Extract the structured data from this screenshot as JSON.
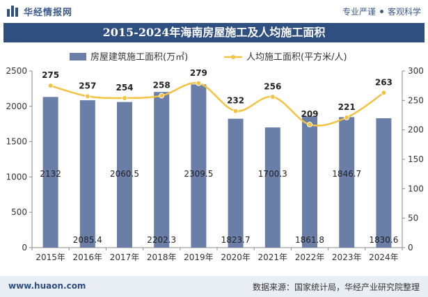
{
  "header": {
    "brand": "华经情报网",
    "slogan_left": "专业严谨",
    "slogan_right": "客观科学"
  },
  "footer": {
    "url": "www.huaon.com",
    "source": "数据来源：国家统计局，华经产业研究院整理"
  },
  "chart_data": {
    "type": "bar+line",
    "title": "2015-2024年海南房屋施工及人均施工面积",
    "categories": [
      "2015年",
      "2016年",
      "2017年",
      "2018年",
      "2019年",
      "2020年",
      "2021年",
      "2022年",
      "2023年",
      "2024年"
    ],
    "series": [
      {
        "name": "房屋建筑施工面积(万㎡)",
        "type": "bar",
        "axis": "left",
        "values": [
          2132,
          2085.4,
          2060.5,
          2202.3,
          2309.5,
          1823.7,
          1700.3,
          1861.8,
          1846.7,
          1830.6
        ],
        "labels": [
          "2132",
          "2085.4",
          "2060.5",
          "2202.3",
          "2309.5",
          "1823.7",
          "1700.3",
          "1861.8",
          "1846.7",
          "1830.6"
        ],
        "color": "#6b7ea8"
      },
      {
        "name": "人均施工面积(平方米/人)",
        "type": "line",
        "axis": "right",
        "values": [
          275,
          257,
          254,
          258,
          279,
          232,
          256,
          209,
          221,
          263
        ],
        "labels": [
          "275",
          "257",
          "254",
          "258",
          "279",
          "232",
          "256",
          "209",
          "221",
          "263"
        ],
        "color": "#f5c242"
      }
    ],
    "y_left": {
      "min": 0,
      "max": 2500,
      "ticks": [
        "0",
        "500",
        "1000",
        "1500",
        "2000",
        "2500"
      ]
    },
    "y_right": {
      "min": 0,
      "max": 300,
      "ticks": [
        "0",
        "50",
        "100",
        "150",
        "200",
        "250",
        "300"
      ]
    },
    "legend_position": "top",
    "grid": false
  }
}
